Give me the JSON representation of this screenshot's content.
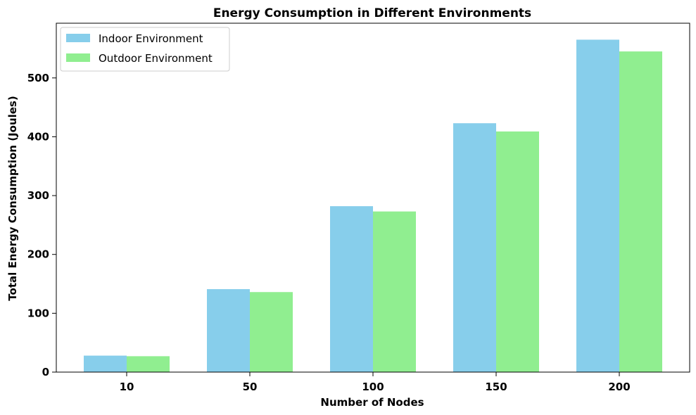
{
  "chart_data": {
    "type": "bar",
    "title": "Energy Consumption in Different Environments",
    "xlabel": "Number of Nodes",
    "ylabel": "Total Energy Consumption (Joules)",
    "categories": [
      "10",
      "50",
      "100",
      "150",
      "200"
    ],
    "series": [
      {
        "name": "Indoor Environment",
        "values": [
          28,
          141,
          282,
          423,
          565
        ],
        "color": "#87ceeb"
      },
      {
        "name": "Outdoor Environment",
        "values": [
          27,
          136,
          273,
          409,
          545
        ],
        "color": "#90ee90"
      }
    ],
    "ylim": [
      0,
      593
    ],
    "yticks": [
      0,
      100,
      200,
      300,
      400,
      500
    ],
    "grid": false,
    "legend_position": "top-left"
  }
}
